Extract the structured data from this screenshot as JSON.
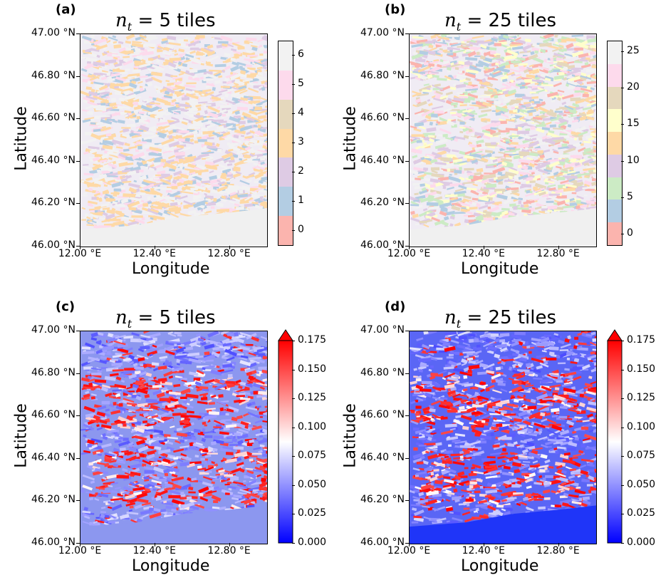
{
  "chart_data": [
    {
      "panel": "(a)",
      "type": "heatmap",
      "title_base": "n",
      "title_sub": "t",
      "title_rest": " = 5 tiles",
      "xlabel": "Longitude",
      "ylabel": "Latitude",
      "xticks": [
        "12.00 °E",
        "12.40 °E",
        "12.80 °E"
      ],
      "yticks": [
        "47.00 °N",
        "46.80 °N",
        "46.60 °N",
        "46.40 °N",
        "46.20 °N",
        "46.00 °N"
      ],
      "xlim": [
        12.0,
        13.0
      ],
      "ylim": [
        46.0,
        47.0
      ],
      "colorbar": {
        "kind": "discrete",
        "ticks": [
          "0",
          "1",
          "2",
          "3",
          "4",
          "5",
          "6"
        ],
        "colors": [
          "#fbb4ae",
          "#b3cde3",
          "#decbe4",
          "#fed9a6",
          "#e5d8bd",
          "#fddaec",
          "#f2f2f2"
        ]
      }
    },
    {
      "panel": "(b)",
      "type": "heatmap",
      "title_base": "n",
      "title_sub": "t",
      "title_rest": " = 25 tiles",
      "xlabel": "Longitude",
      "ylabel": "Latitude",
      "xticks": [
        "12.00 °E",
        "12.40 °E",
        "12.80 °E"
      ],
      "yticks": [
        "47.00 °N",
        "46.80 °N",
        "46.60 °N",
        "46.40 °N",
        "46.20 °N",
        "46.00 °N"
      ],
      "xlim": [
        12.0,
        13.0
      ],
      "ylim": [
        46.0,
        47.0
      ],
      "colorbar": {
        "kind": "discrete",
        "ticks": [
          "0",
          "5",
          "10",
          "15",
          "20",
          "25"
        ],
        "colors": [
          "#fbb4ae",
          "#b3cde3",
          "#ccebc5",
          "#decbe4",
          "#fed9a6",
          "#ffffcc",
          "#e5d8bd",
          "#fddaec",
          "#f2f2f2"
        ]
      }
    },
    {
      "panel": "(c)",
      "type": "heatmap",
      "title_base": "n",
      "title_sub": "t",
      "title_rest": " = 5 tiles",
      "xlabel": "Longitude",
      "ylabel": "Latitude",
      "xticks": [
        "12.00 °E",
        "12.40 °E",
        "12.80 °E"
      ],
      "yticks": [
        "47.00 °N",
        "46.80 °N",
        "46.60 °N",
        "46.40 °N",
        "46.20 °N",
        "46.00 °N"
      ],
      "xlim": [
        12.0,
        13.0
      ],
      "ylim": [
        46.0,
        47.0
      ],
      "colorbar": {
        "kind": "continuous",
        "cmap": "bwr",
        "range": [
          0.0,
          0.175
        ],
        "extend": "max",
        "ticks": [
          "0.000",
          "0.025",
          "0.050",
          "0.075",
          "0.100",
          "0.125",
          "0.150",
          "0.175"
        ]
      }
    },
    {
      "panel": "(d)",
      "type": "heatmap",
      "title_base": "n",
      "title_sub": "t",
      "title_rest": " = 25 tiles",
      "xlabel": "Longitude",
      "ylabel": "Latitude",
      "xticks": [
        "12.00 °E",
        "12.40 °E",
        "12.80 °E"
      ],
      "yticks": [
        "47.00 °N",
        "46.80 °N",
        "46.60 °N",
        "46.40 °N",
        "46.20 °N",
        "46.00 °N"
      ],
      "xlim": [
        12.0,
        13.0
      ],
      "ylim": [
        46.0,
        47.0
      ],
      "colorbar": {
        "kind": "continuous",
        "cmap": "bwr",
        "range": [
          0.0,
          0.175
        ],
        "extend": "max",
        "ticks": [
          "0.000",
          "0.025",
          "0.050",
          "0.075",
          "0.100",
          "0.125",
          "0.150",
          "0.175"
        ]
      }
    }
  ]
}
